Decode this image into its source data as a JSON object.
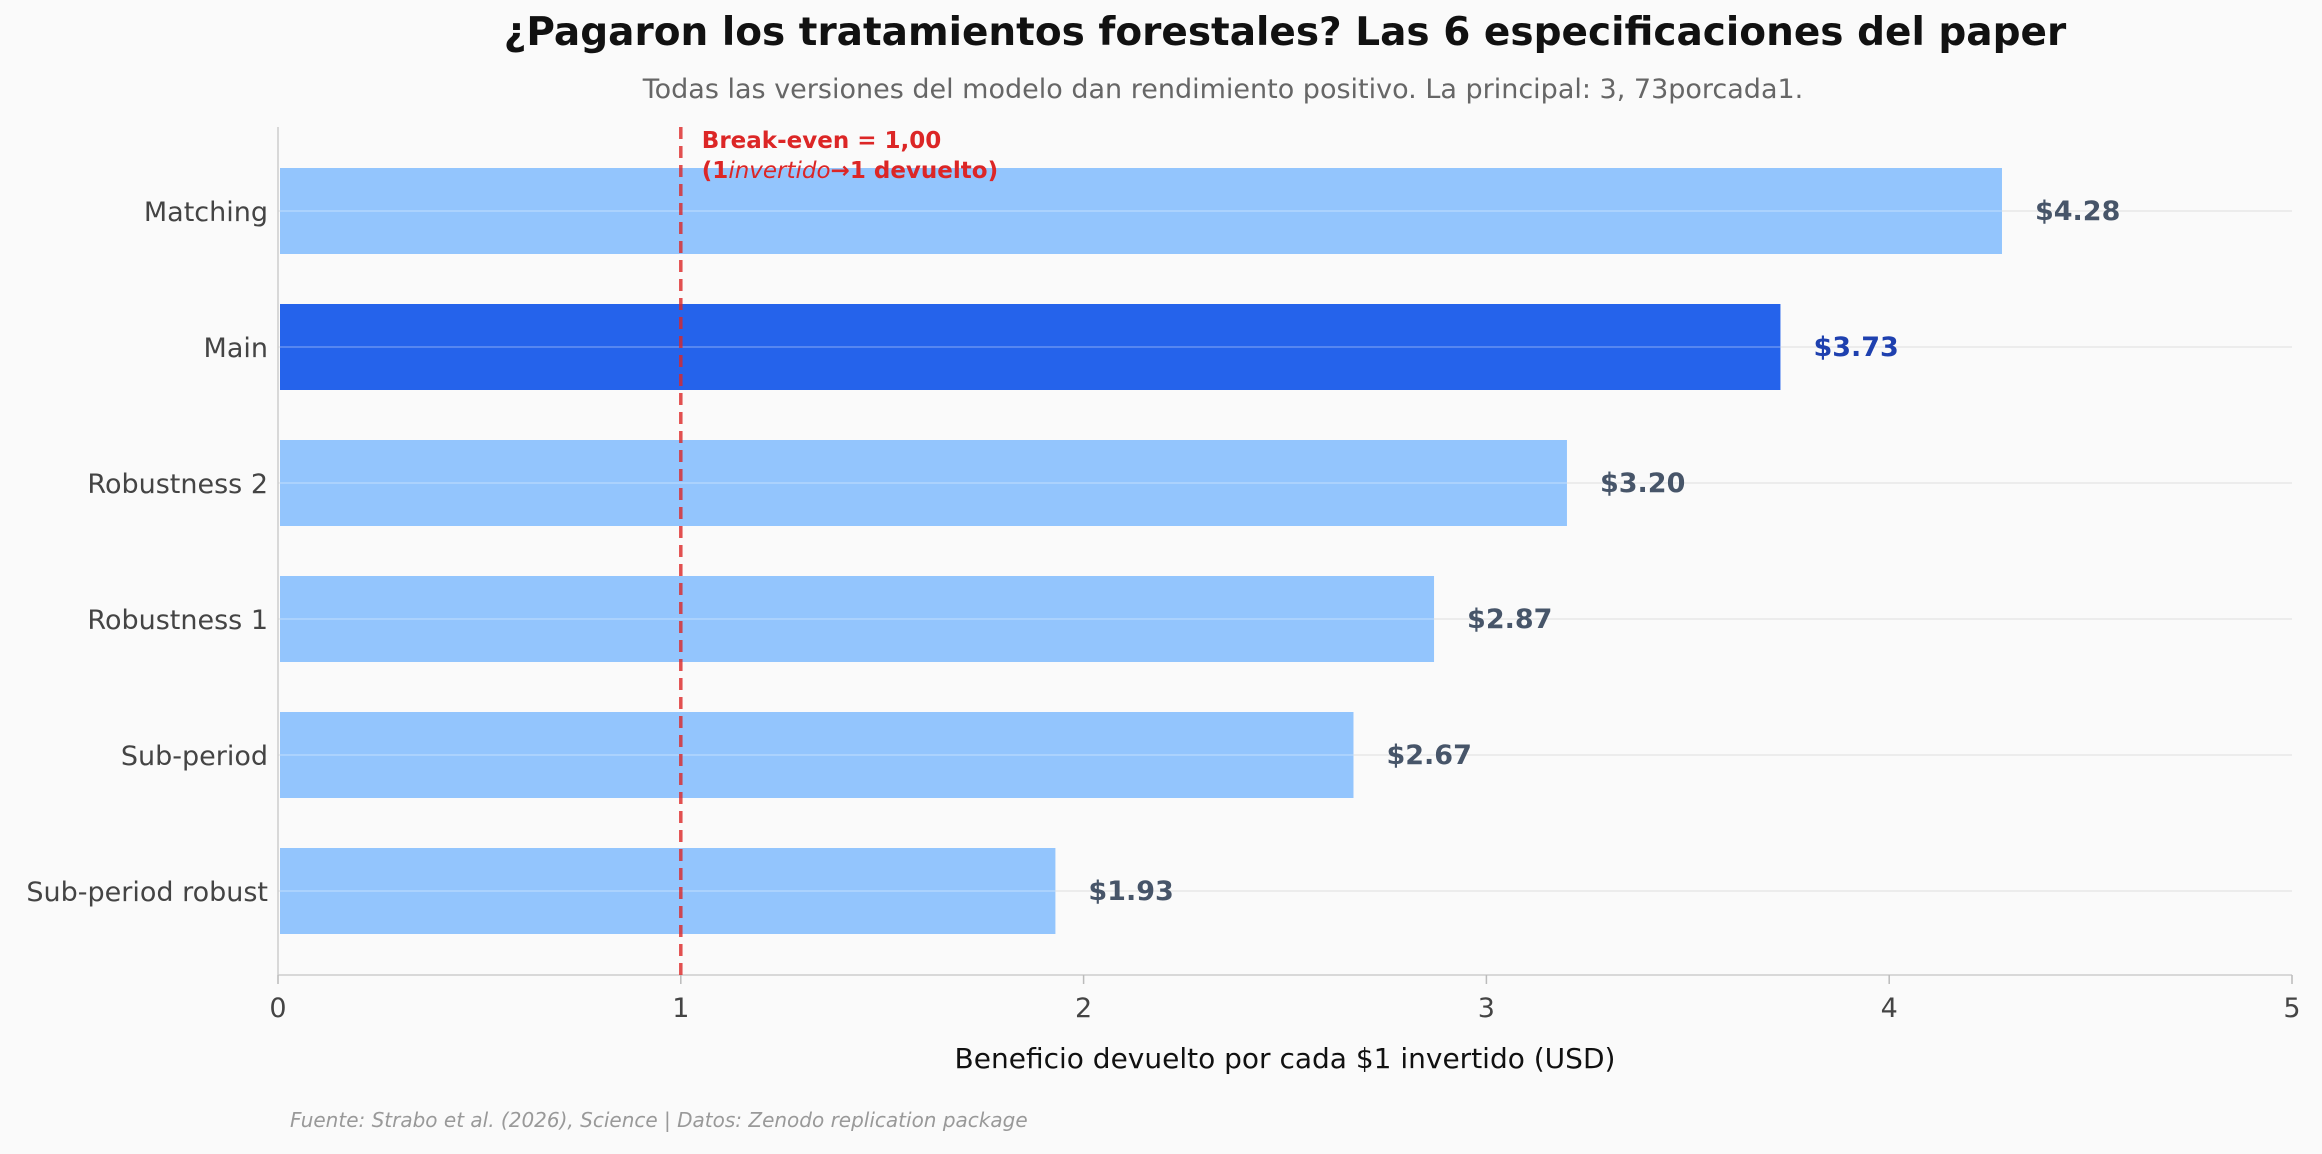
{
  "chart_data": {
    "type": "bar",
    "orientation": "horizontal",
    "title": "¿Pagaron los tratamientos forestales? Las 6 especificaciones del paper",
    "subtitle": "Todas las versiones del modelo dan rendimiento positivo. La principal: 3, 73porcada1.",
    "xlabel": "Beneficio devuelto por cada $1 invertido (USD)",
    "ylabel": "",
    "xlim": [
      0,
      5
    ],
    "xticks": [
      "0",
      "1",
      "2",
      "3",
      "4",
      "5"
    ],
    "categories": [
      "Matching",
      "Main",
      "Robustness 2",
      "Robustness 1",
      "Sub-period",
      "Sub-period robust"
    ],
    "values": [
      4.28,
      3.73,
      3.2,
      2.87,
      2.67,
      1.93
    ],
    "value_labels": [
      "$4.28",
      "$3.73",
      "$3.20",
      "$2.87",
      "$2.67",
      "$1.93"
    ],
    "highlight_index": 1,
    "colors": {
      "bar": "#93c5fd",
      "bar_highlight": "#2563eb",
      "label": "#475569",
      "label_highlight": "#1e40af",
      "reference": "#dc2626"
    },
    "reference_line": {
      "x": 1.0,
      "label_line1": "Break-even = 1,00",
      "label_line2_prefix": "(1",
      "label_line2_italic": "invertido",
      "label_line2_suffix": "→1 devuelto)"
    },
    "grid": "horizontal",
    "source": "Fuente: Strabo et al. (2026), Science | Datos: Zenodo replication package"
  }
}
